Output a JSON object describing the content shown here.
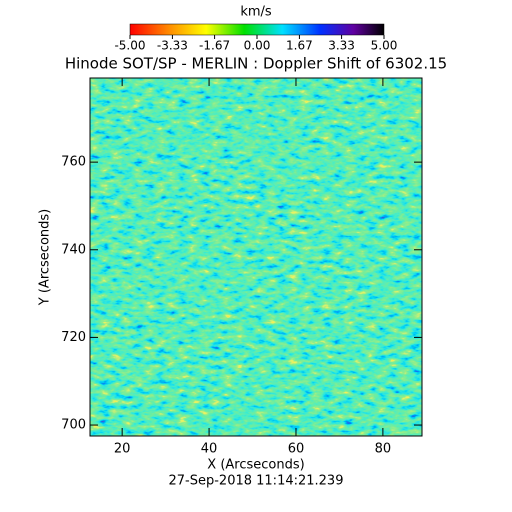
{
  "chart_data": {
    "type": "heatmap",
    "title": "Hinode SOT/SP - MERLIN : Doppler Shift of 6302.15",
    "colorbar_label": "km/s",
    "xlabel": "X (Arcseconds)",
    "ylabel": "Y (Arcseconds)",
    "footer": "27-Sep-2018 11:14:21.239",
    "xlim": [
      12.6,
      89.0
    ],
    "ylim": [
      697.5,
      779.2
    ],
    "xticks": [
      20,
      40,
      60,
      80
    ],
    "yticks": [
      700,
      720,
      740,
      760
    ],
    "clim": [
      -5,
      5
    ],
    "cticks": [
      {
        "value": -5,
        "label": "-5.00"
      },
      {
        "value": -3.33,
        "label": "-3.33"
      },
      {
        "value": -1.67,
        "label": "-1.67"
      },
      {
        "value": 0,
        "label": "0.00"
      },
      {
        "value": 1.67,
        "label": "1.67"
      },
      {
        "value": 3.33,
        "label": "3.33"
      },
      {
        "value": 5,
        "label": "5.00"
      }
    ]
  }
}
